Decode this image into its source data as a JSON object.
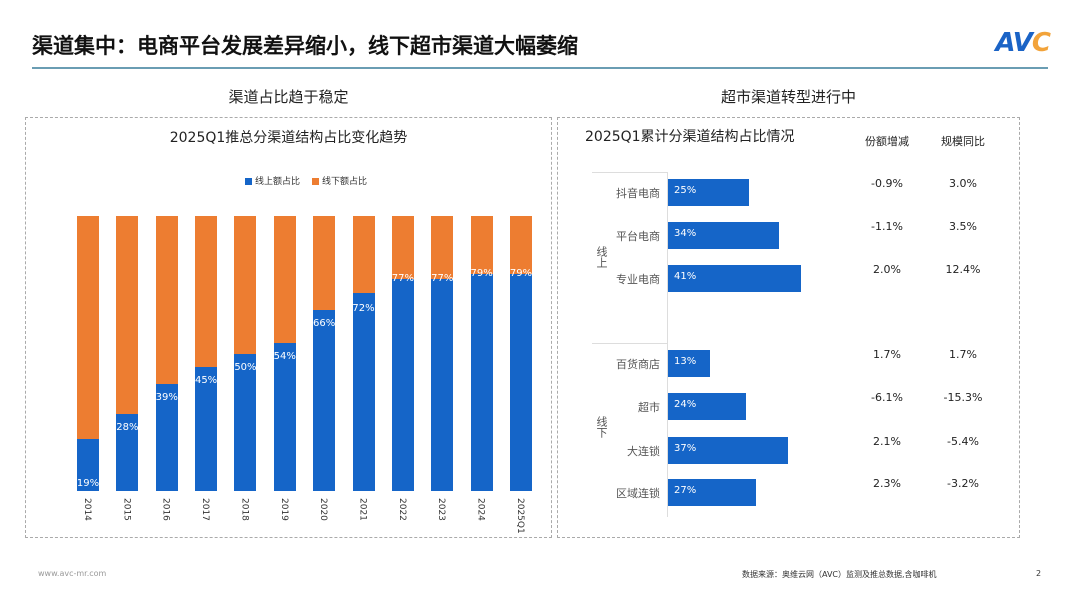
{
  "header": {
    "title": "渠道集中：电商平台发展差异缩小，线下超市渠道大幅萎缩",
    "logo": "AVC"
  },
  "left": {
    "section_title": "渠道占比趋于稳定",
    "chart_data": {
      "type": "bar",
      "stacked": true,
      "title": "2025Q1推总分渠道结构占比变化趋势",
      "categories": [
        "2014",
        "2015",
        "2016",
        "2017",
        "2018",
        "2019",
        "2020",
        "2021",
        "2022",
        "2023",
        "2024",
        "2025Q1"
      ],
      "series": [
        {
          "name": "线上额占比",
          "color": "#1565c8",
          "values": [
            19,
            28,
            39,
            45,
            50,
            54,
            66,
            72,
            77,
            77,
            79,
            79
          ]
        },
        {
          "name": "线下额占比",
          "color": "#ed7d31",
          "values": [
            81,
            72,
            61,
            55,
            50,
            46,
            34,
            28,
            23,
            23,
            21,
            21
          ]
        }
      ],
      "ylim": [
        0,
        100
      ],
      "legend": "top",
      "grid": false
    }
  },
  "right": {
    "section_title": "超市渠道转型进行中",
    "chart_data": {
      "type": "bar",
      "orientation": "horizontal",
      "title": "2025Q1累计分渠道结构占比情况",
      "columns": [
        "份额增减",
        "规模同比"
      ],
      "groups": [
        {
          "name": "线上",
          "rows": [
            {
              "label": "抖音电商",
              "value": 25,
              "share_change": "-0.9%",
              "yoy": "3.0%"
            },
            {
              "label": "平台电商",
              "value": 34,
              "share_change": "-1.1%",
              "yoy": "3.5%"
            },
            {
              "label": "专业电商",
              "value": 41,
              "share_change": "2.0%",
              "yoy": "12.4%"
            }
          ]
        },
        {
          "name": "线下",
          "rows": [
            {
              "label": "百货商店",
              "value": 13,
              "share_change": "1.7%",
              "yoy": "1.7%"
            },
            {
              "label": "超市",
              "value": 24,
              "share_change": "-6.1%",
              "yoy": "-15.3%"
            },
            {
              "label": "大连锁",
              "value": 37,
              "share_change": "2.1%",
              "yoy": "-5.4%"
            },
            {
              "label": "区域连锁",
              "value": 27,
              "share_change": "2.3%",
              "yoy": "-3.2%"
            }
          ]
        }
      ],
      "bar_color": "#1565c8"
    }
  },
  "footer": {
    "website": "www.avc-mr.com",
    "source": "数据来源：奥维云网（AVC）监测及推总数据,含咖啡机",
    "page": "2"
  }
}
